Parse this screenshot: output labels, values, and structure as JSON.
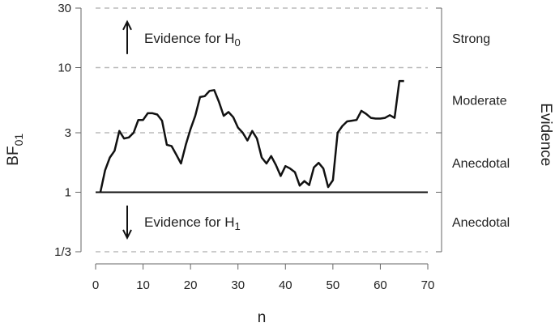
{
  "chart_data": {
    "type": "line",
    "xlabel": "n",
    "ylabel": {
      "main": "BF",
      "sub": "01"
    },
    "right_axis_title": "Evidence",
    "x_ticks": [
      "0",
      "10",
      "20",
      "30",
      "40",
      "50",
      "60",
      "70"
    ],
    "xlim": [
      0,
      70
    ],
    "y_scale": "log",
    "ylim": [
      0.3333,
      30
    ],
    "y_ticks": [
      {
        "value": 30,
        "label": "30"
      },
      {
        "value": 10,
        "label": "10"
      },
      {
        "value": 3,
        "label": "3"
      },
      {
        "value": 1,
        "label": "1"
      },
      {
        "value": 0.3333,
        "label": "1/3"
      }
    ],
    "evidence_levels": [
      {
        "label": "Strong",
        "value": 17.3
      },
      {
        "label": "Moderate",
        "value": 5.5
      },
      {
        "label": "Anecdotal",
        "value": 1.73
      },
      {
        "label": "Anecdotal",
        "value": 0.58
      }
    ],
    "annotations": [
      {
        "arrow": "up",
        "text": "Evidence for H",
        "sub": "0",
        "value": 17.3
      },
      {
        "arrow": "down",
        "text": "Evidence for H",
        "sub": "1",
        "value": 0.58
      }
    ],
    "reference_line": 1,
    "grid": "dashed horizontal at y ticks",
    "series": [
      {
        "x": [
          1,
          2,
          3,
          4,
          5,
          6,
          7,
          8,
          9,
          10,
          11,
          12,
          13,
          14,
          15,
          16,
          17,
          18,
          19,
          20,
          21,
          22,
          23,
          24,
          25,
          26,
          27,
          28,
          29,
          30,
          31,
          32,
          33,
          34,
          35,
          36,
          37,
          38,
          39,
          40,
          41,
          42,
          43,
          44,
          45,
          46,
          47,
          48,
          49,
          50,
          51,
          52,
          53,
          54,
          55,
          56,
          57,
          58,
          59,
          60,
          61,
          62,
          63,
          64,
          65
        ],
        "y": [
          1.0,
          1.5,
          1.9,
          2.15,
          3.1,
          2.7,
          2.75,
          3.0,
          3.8,
          3.8,
          4.3,
          4.3,
          4.2,
          3.75,
          2.4,
          2.35,
          2.0,
          1.7,
          2.4,
          3.2,
          4.1,
          5.8,
          5.9,
          6.5,
          6.6,
          5.3,
          4.1,
          4.4,
          4.0,
          3.3,
          3.0,
          2.6,
          3.1,
          2.7,
          1.9,
          1.7,
          1.95,
          1.65,
          1.35,
          1.62,
          1.55,
          1.45,
          1.13,
          1.23,
          1.14,
          1.58,
          1.72,
          1.55,
          1.1,
          1.25,
          3.0,
          3.4,
          3.7,
          3.75,
          3.8,
          4.5,
          4.25,
          3.95,
          3.9,
          3.9,
          3.95,
          4.15,
          3.95,
          7.8,
          7.8
        ]
      }
    ]
  }
}
